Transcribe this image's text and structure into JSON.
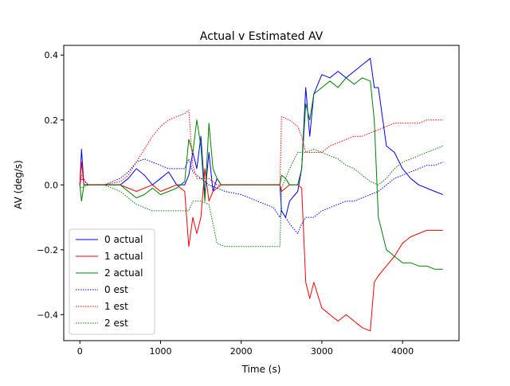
{
  "chart_data": {
    "type": "line",
    "title": "Actual v Estimated AV",
    "xlabel": "Time (s)",
    "ylabel": "AV (deg/s)",
    "xlim": [
      -200,
      4700
    ],
    "ylim": [
      -0.48,
      0.43
    ],
    "xticks": [
      0,
      1000,
      2000,
      3000,
      4000
    ],
    "xtick_labels": [
      "0",
      "1000",
      "2000",
      "3000",
      "4000"
    ],
    "yticks": [
      -0.4,
      -0.2,
      0.0,
      0.2,
      0.4
    ],
    "ytick_labels": [
      "−0.4",
      "−0.2",
      "0.0",
      "0.2",
      "0.4"
    ],
    "grid": false,
    "legend_position": "lower-left",
    "series": [
      {
        "name": "0 actual",
        "color": "#0000ff",
        "style": "solid",
        "x": [
          0,
          20,
          50,
          100,
          300,
          500,
          600,
          700,
          800,
          900,
          1000,
          1100,
          1200,
          1300,
          1350,
          1400,
          1450,
          1500,
          1550,
          1600,
          1650,
          1700,
          1750,
          1800,
          2000,
          2200,
          2400,
          2480,
          2500,
          2550,
          2600,
          2700,
          2750,
          2800,
          2850,
          2900,
          3000,
          3100,
          3200,
          3300,
          3400,
          3500,
          3600,
          3650,
          3700,
          3800,
          3900,
          4000,
          4100,
          4200,
          4300,
          4400,
          4500
        ],
        "y": [
          0.0,
          0.11,
          0.0,
          0.0,
          0.0,
          0.0,
          0.02,
          0.05,
          0.03,
          0.0,
          0.02,
          0.04,
          0.0,
          0.0,
          0.03,
          0.1,
          0.05,
          0.15,
          -0.03,
          0.1,
          -0.02,
          0.02,
          0.0,
          0.0,
          0.0,
          0.0,
          0.0,
          0.0,
          -0.08,
          -0.1,
          -0.05,
          -0.02,
          0.05,
          0.3,
          0.15,
          0.28,
          0.34,
          0.33,
          0.35,
          0.33,
          0.35,
          0.37,
          0.39,
          0.3,
          0.3,
          0.12,
          0.1,
          0.05,
          0.02,
          0.0,
          -0.01,
          -0.02,
          -0.03
        ]
      },
      {
        "name": "1 actual",
        "color": "#ff0000",
        "style": "solid",
        "x": [
          0,
          20,
          50,
          100,
          300,
          500,
          600,
          700,
          800,
          900,
          1000,
          1100,
          1200,
          1300,
          1350,
          1400,
          1450,
          1500,
          1550,
          1600,
          1650,
          1700,
          1750,
          1800,
          2000,
          2200,
          2400,
          2480,
          2500,
          2550,
          2600,
          2700,
          2750,
          2800,
          2850,
          2900,
          3000,
          3100,
          3200,
          3300,
          3400,
          3500,
          3600,
          3650,
          3700,
          3800,
          3900,
          4000,
          4100,
          4200,
          4300,
          4400,
          4500
        ],
        "y": [
          0.0,
          0.07,
          0.0,
          0.0,
          0.0,
          0.0,
          -0.01,
          -0.02,
          -0.01,
          0.0,
          -0.02,
          -0.01,
          0.0,
          -0.02,
          -0.19,
          -0.1,
          -0.15,
          -0.1,
          0.05,
          -0.05,
          -0.02,
          -0.01,
          0.0,
          0.0,
          0.0,
          0.0,
          0.0,
          0.0,
          -0.02,
          -0.01,
          0.0,
          0.0,
          -0.01,
          -0.3,
          -0.35,
          -0.3,
          -0.38,
          -0.4,
          -0.42,
          -0.4,
          -0.42,
          -0.44,
          -0.45,
          -0.3,
          -0.28,
          -0.25,
          -0.22,
          -0.18,
          -0.16,
          -0.15,
          -0.14,
          -0.14,
          -0.14
        ]
      },
      {
        "name": "2 actual",
        "color": "#008000",
        "style": "solid",
        "x": [
          0,
          20,
          50,
          100,
          300,
          500,
          600,
          700,
          800,
          900,
          1000,
          1100,
          1200,
          1300,
          1350,
          1400,
          1450,
          1500,
          1550,
          1600,
          1650,
          1700,
          1750,
          1800,
          2000,
          2200,
          2400,
          2480,
          2500,
          2550,
          2600,
          2700,
          2750,
          2800,
          2850,
          2900,
          3000,
          3100,
          3200,
          3300,
          3400,
          3500,
          3600,
          3650,
          3700,
          3800,
          3900,
          4000,
          4100,
          4200,
          4300,
          4400,
          4500
        ],
        "y": [
          0.0,
          -0.05,
          0.0,
          0.0,
          0.0,
          0.0,
          -0.02,
          -0.04,
          -0.03,
          -0.01,
          -0.03,
          -0.02,
          -0.01,
          0.01,
          0.14,
          0.1,
          0.2,
          0.12,
          -0.05,
          0.19,
          0.05,
          0.02,
          0.0,
          0.0,
          0.0,
          0.0,
          0.0,
          0.0,
          0.03,
          0.02,
          0.0,
          0.0,
          0.05,
          0.25,
          0.2,
          0.28,
          0.3,
          0.32,
          0.3,
          0.33,
          0.31,
          0.33,
          0.32,
          0.2,
          -0.1,
          -0.2,
          -0.22,
          -0.24,
          -0.24,
          -0.25,
          -0.25,
          -0.26,
          -0.26
        ]
      },
      {
        "name": "0 est",
        "color": "#0000ff",
        "style": "dotted",
        "x": [
          0,
          20,
          100,
          300,
          500,
          600,
          700,
          800,
          900,
          1000,
          1100,
          1200,
          1300,
          1350,
          1400,
          1450,
          1500,
          1600,
          1700,
          1800,
          2000,
          2200,
          2400,
          2480,
          2500,
          2600,
          2700,
          2750,
          2800,
          2900,
          3000,
          3100,
          3200,
          3300,
          3400,
          3500,
          3600,
          3700,
          3800,
          3900,
          4000,
          4100,
          4200,
          4300,
          4400,
          4500
        ],
        "y": [
          0.0,
          0.02,
          0.0,
          0.0,
          0.02,
          0.04,
          0.07,
          0.08,
          0.07,
          0.06,
          0.05,
          0.05,
          0.05,
          0.08,
          0.04,
          0.03,
          0.02,
          0.0,
          -0.01,
          -0.02,
          -0.03,
          -0.05,
          -0.07,
          -0.1,
          -0.08,
          -0.12,
          -0.15,
          -0.12,
          -0.1,
          -0.1,
          -0.08,
          -0.07,
          -0.06,
          -0.05,
          -0.05,
          -0.04,
          -0.03,
          -0.02,
          0.0,
          0.02,
          0.03,
          0.04,
          0.05,
          0.06,
          0.06,
          0.07
        ]
      },
      {
        "name": "1 est",
        "color": "#ff0000",
        "style": "dotted",
        "x": [
          0,
          20,
          100,
          300,
          500,
          600,
          700,
          800,
          900,
          1000,
          1100,
          1200,
          1300,
          1350,
          1400,
          1450,
          1500,
          1600,
          1700,
          1800,
          2000,
          2200,
          2400,
          2480,
          2500,
          2600,
          2700,
          2750,
          2800,
          2900,
          3000,
          3100,
          3200,
          3300,
          3400,
          3500,
          3600,
          3700,
          3800,
          3900,
          4000,
          4100,
          4200,
          4300,
          4400,
          4500
        ],
        "y": [
          0.0,
          0.03,
          0.0,
          0.0,
          0.01,
          0.03,
          0.07,
          0.11,
          0.15,
          0.18,
          0.2,
          0.21,
          0.22,
          0.23,
          0.06,
          0.02,
          0.02,
          0.02,
          0.0,
          0.0,
          0.0,
          0.0,
          0.0,
          0.0,
          0.21,
          0.2,
          0.18,
          0.15,
          0.1,
          0.1,
          0.1,
          0.12,
          0.13,
          0.14,
          0.15,
          0.15,
          0.16,
          0.17,
          0.18,
          0.19,
          0.19,
          0.19,
          0.19,
          0.2,
          0.2,
          0.2
        ]
      },
      {
        "name": "2 est",
        "color": "#008000",
        "style": "dotted",
        "x": [
          0,
          20,
          100,
          300,
          500,
          600,
          700,
          800,
          900,
          1000,
          1100,
          1200,
          1300,
          1350,
          1400,
          1450,
          1500,
          1600,
          1700,
          1800,
          2000,
          2200,
          2400,
          2480,
          2500,
          2600,
          2700,
          2750,
          2800,
          2900,
          3000,
          3100,
          3200,
          3300,
          3400,
          3500,
          3600,
          3700,
          3800,
          3900,
          4000,
          4100,
          4200,
          4300,
          4400,
          4500
        ],
        "y": [
          0.0,
          -0.01,
          0.0,
          0.0,
          -0.02,
          -0.04,
          -0.06,
          -0.07,
          -0.08,
          -0.08,
          -0.08,
          -0.08,
          -0.08,
          -0.08,
          -0.05,
          -0.05,
          -0.05,
          -0.06,
          -0.18,
          -0.19,
          -0.19,
          -0.19,
          -0.19,
          -0.19,
          -0.01,
          0.05,
          0.1,
          0.1,
          0.1,
          0.11,
          0.1,
          0.09,
          0.08,
          0.06,
          0.05,
          0.03,
          0.01,
          0.0,
          0.02,
          0.05,
          0.07,
          0.08,
          0.09,
          0.1,
          0.11,
          0.12
        ]
      }
    ]
  }
}
